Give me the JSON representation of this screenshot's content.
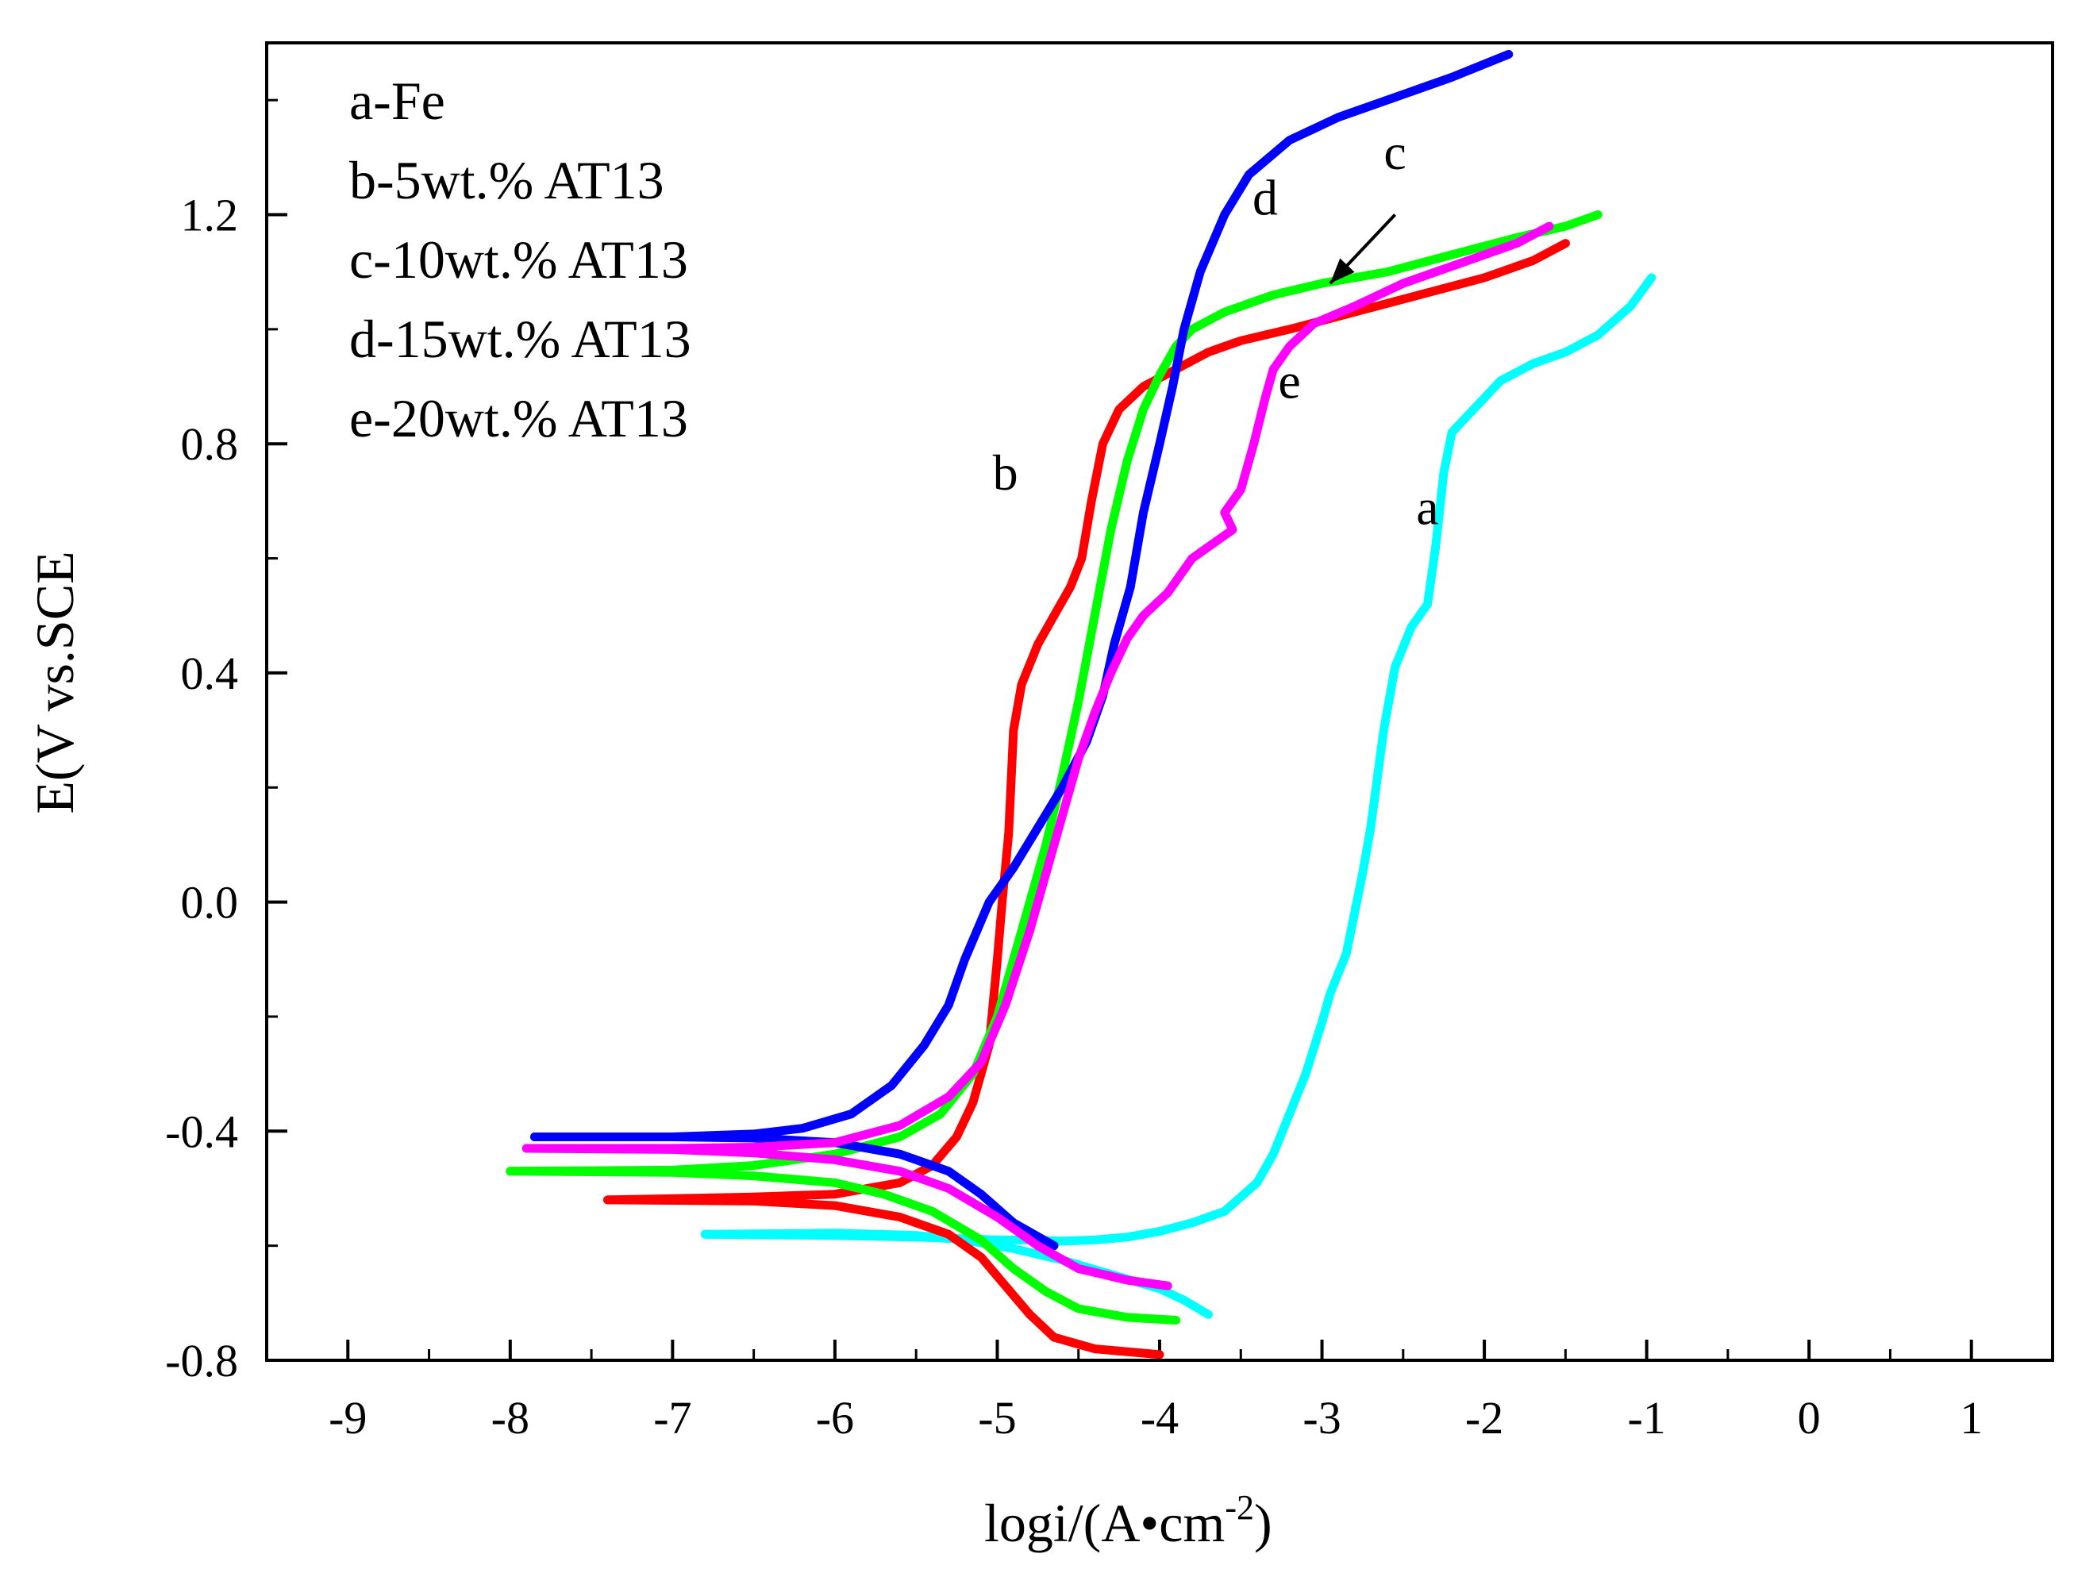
{
  "chart_data": {
    "type": "line",
    "title": "",
    "xlabel": "logi/(A•cm",
    "xlabel_sup": "-2",
    "xlabel_end": ")",
    "ylabel": "E(V vs.SCE",
    "xlim": [
      -9.5,
      1.5
    ],
    "ylim": [
      -0.8,
      1.5
    ],
    "x_ticks": [
      -9,
      -8,
      -7,
      -6,
      -5,
      -4,
      -3,
      -2,
      -1,
      0,
      1
    ],
    "x_tick_labels": [
      "-9",
      "-8",
      "-7",
      "-6",
      "-5",
      "-4",
      "-3",
      "-2",
      "-1",
      "0",
      "1"
    ],
    "y_ticks": [
      -0.8,
      -0.4,
      0.0,
      0.4,
      0.8,
      1.2
    ],
    "y_tick_labels": [
      "-0.8",
      "-0.4",
      "0.0",
      "0.4",
      "0.8",
      "1.2"
    ],
    "grid": false,
    "legend": {
      "placement": "top-left",
      "entries": [
        "a-Fe",
        "b-5wt.% AT13",
        "c-10wt.% AT13",
        "d-15wt.% AT13",
        "e-20wt.% AT13"
      ]
    },
    "series": [
      {
        "name": "a",
        "label": "a",
        "color": "#00ffff",
        "label_at": [
          -2.35,
          0.66
        ],
        "points": [
          [
            -6.8,
            -0.58
          ],
          [
            -6.0,
            -0.582
          ],
          [
            -5.5,
            -0.585
          ],
          [
            -5.0,
            -0.59
          ],
          [
            -4.8,
            -0.59
          ],
          [
            -4.6,
            -0.592
          ],
          [
            -4.4,
            -0.59
          ],
          [
            -4.2,
            -0.585
          ],
          [
            -4.0,
            -0.575
          ],
          [
            -3.8,
            -0.56
          ],
          [
            -3.6,
            -0.54
          ],
          [
            -3.4,
            -0.49
          ],
          [
            -3.3,
            -0.44
          ],
          [
            -3.2,
            -0.37
          ],
          [
            -3.1,
            -0.3
          ],
          [
            -3.0,
            -0.21
          ],
          [
            -2.95,
            -0.16
          ],
          [
            -2.85,
            -0.09
          ],
          [
            -2.75,
            0.05
          ],
          [
            -2.7,
            0.13
          ],
          [
            -2.62,
            0.3
          ],
          [
            -2.55,
            0.41
          ],
          [
            -2.45,
            0.48
          ],
          [
            -2.35,
            0.52
          ],
          [
            -2.3,
            0.62
          ],
          [
            -2.25,
            0.75
          ],
          [
            -2.2,
            0.82
          ],
          [
            -2.1,
            0.85
          ],
          [
            -2.0,
            0.88
          ],
          [
            -1.9,
            0.91
          ],
          [
            -1.7,
            0.94
          ],
          [
            -1.5,
            0.96
          ],
          [
            -1.3,
            0.99
          ],
          [
            -1.1,
            1.04
          ],
          [
            -0.97,
            1.09
          ]
        ]
      },
      {
        "name": "a-cathodic",
        "label": "",
        "color": "#00ffff",
        "points": [
          [
            -6.8,
            -0.58
          ],
          [
            -6.0,
            -0.578
          ],
          [
            -5.5,
            -0.582
          ],
          [
            -5.2,
            -0.59
          ],
          [
            -4.9,
            -0.605
          ],
          [
            -4.6,
            -0.625
          ],
          [
            -4.3,
            -0.65
          ],
          [
            -4.0,
            -0.675
          ],
          [
            -3.85,
            -0.695
          ],
          [
            -3.7,
            -0.72
          ]
        ]
      },
      {
        "name": "b",
        "label": "b",
        "color": "#ff0000",
        "label_at": [
          -4.95,
          0.72
        ],
        "points": [
          [
            -7.4,
            -0.52
          ],
          [
            -6.5,
            -0.515
          ],
          [
            -6.0,
            -0.51
          ],
          [
            -5.6,
            -0.49
          ],
          [
            -5.4,
            -0.46
          ],
          [
            -5.25,
            -0.41
          ],
          [
            -5.15,
            -0.35
          ],
          [
            -5.05,
            -0.25
          ],
          [
            -5.0,
            -0.1
          ],
          [
            -4.97,
            0.0
          ],
          [
            -4.93,
            0.12
          ],
          [
            -4.9,
            0.3
          ],
          [
            -4.85,
            0.38
          ],
          [
            -4.75,
            0.45
          ],
          [
            -4.65,
            0.5
          ],
          [
            -4.55,
            0.55
          ],
          [
            -4.48,
            0.6
          ],
          [
            -4.42,
            0.7
          ],
          [
            -4.35,
            0.8
          ],
          [
            -4.25,
            0.86
          ],
          [
            -4.1,
            0.9
          ],
          [
            -3.9,
            0.93
          ],
          [
            -3.7,
            0.96
          ],
          [
            -3.5,
            0.98
          ],
          [
            -3.2,
            1.0
          ],
          [
            -2.8,
            1.03
          ],
          [
            -2.4,
            1.06
          ],
          [
            -2.0,
            1.09
          ],
          [
            -1.7,
            1.12
          ],
          [
            -1.5,
            1.15
          ]
        ]
      },
      {
        "name": "b-cathodic",
        "label": "",
        "color": "#ff0000",
        "points": [
          [
            -7.4,
            -0.52
          ],
          [
            -6.5,
            -0.522
          ],
          [
            -6.0,
            -0.53
          ],
          [
            -5.6,
            -0.55
          ],
          [
            -5.3,
            -0.58
          ],
          [
            -5.1,
            -0.62
          ],
          [
            -4.95,
            -0.67
          ],
          [
            -4.8,
            -0.72
          ],
          [
            -4.65,
            -0.76
          ],
          [
            -4.4,
            -0.78
          ],
          [
            -4.0,
            -0.79
          ]
        ]
      },
      {
        "name": "c",
        "label": "c",
        "color": "#00ff00",
        "label_at": [
          -2.55,
          1.28
        ],
        "points": [
          [
            -8.0,
            -0.47
          ],
          [
            -7.0,
            -0.468
          ],
          [
            -6.5,
            -0.46
          ],
          [
            -6.0,
            -0.44
          ],
          [
            -5.6,
            -0.41
          ],
          [
            -5.35,
            -0.37
          ],
          [
            -5.15,
            -0.3
          ],
          [
            -5.0,
            -0.2
          ],
          [
            -4.9,
            -0.1
          ],
          [
            -4.8,
            0.0
          ],
          [
            -4.7,
            0.1
          ],
          [
            -4.6,
            0.22
          ],
          [
            -4.5,
            0.35
          ],
          [
            -4.4,
            0.5
          ],
          [
            -4.3,
            0.65
          ],
          [
            -4.2,
            0.77
          ],
          [
            -4.1,
            0.86
          ],
          [
            -4.0,
            0.92
          ],
          [
            -3.9,
            0.97
          ],
          [
            -3.8,
            1.0
          ],
          [
            -3.6,
            1.03
          ],
          [
            -3.3,
            1.06
          ],
          [
            -3.0,
            1.08
          ],
          [
            -2.6,
            1.1
          ],
          [
            -2.2,
            1.13
          ],
          [
            -1.8,
            1.16
          ],
          [
            -1.5,
            1.18
          ],
          [
            -1.3,
            1.2
          ]
        ]
      },
      {
        "name": "c-cathodic",
        "label": "",
        "color": "#00ff00",
        "points": [
          [
            -8.0,
            -0.47
          ],
          [
            -7.0,
            -0.472
          ],
          [
            -6.5,
            -0.478
          ],
          [
            -6.0,
            -0.49
          ],
          [
            -5.7,
            -0.51
          ],
          [
            -5.4,
            -0.54
          ],
          [
            -5.1,
            -0.59
          ],
          [
            -4.9,
            -0.64
          ],
          [
            -4.7,
            -0.68
          ],
          [
            -4.5,
            -0.71
          ],
          [
            -4.2,
            -0.725
          ],
          [
            -3.9,
            -0.73
          ]
        ]
      },
      {
        "name": "d",
        "label": "d",
        "color": "#0000ff",
        "label_at": [
          -3.35,
          1.2
        ],
        "points": [
          [
            -7.85,
            -0.41
          ],
          [
            -7.0,
            -0.41
          ],
          [
            -6.5,
            -0.405
          ],
          [
            -6.2,
            -0.395
          ],
          [
            -5.9,
            -0.37
          ],
          [
            -5.65,
            -0.32
          ],
          [
            -5.45,
            -0.25
          ],
          [
            -5.3,
            -0.18
          ],
          [
            -5.2,
            -0.1
          ],
          [
            -5.05,
            0.0
          ],
          [
            -4.9,
            0.06
          ],
          [
            -4.75,
            0.13
          ],
          [
            -4.6,
            0.2
          ],
          [
            -4.45,
            0.28
          ],
          [
            -4.35,
            0.36
          ],
          [
            -4.28,
            0.45
          ],
          [
            -4.18,
            0.55
          ],
          [
            -4.1,
            0.68
          ],
          [
            -4.0,
            0.8
          ],
          [
            -3.92,
            0.9
          ],
          [
            -3.85,
            1.0
          ],
          [
            -3.75,
            1.1
          ],
          [
            -3.6,
            1.2
          ],
          [
            -3.45,
            1.27
          ],
          [
            -3.2,
            1.33
          ],
          [
            -2.9,
            1.37
          ],
          [
            -2.6,
            1.4
          ],
          [
            -2.2,
            1.44
          ],
          [
            -1.85,
            1.48
          ]
        ]
      },
      {
        "name": "d-cathodic",
        "label": "",
        "color": "#0000ff",
        "points": [
          [
            -7.85,
            -0.41
          ],
          [
            -7.0,
            -0.41
          ],
          [
            -6.5,
            -0.412
          ],
          [
            -6.0,
            -0.42
          ],
          [
            -5.6,
            -0.44
          ],
          [
            -5.3,
            -0.47
          ],
          [
            -5.1,
            -0.51
          ],
          [
            -4.9,
            -0.56
          ],
          [
            -4.65,
            -0.6
          ]
        ]
      },
      {
        "name": "e",
        "label": "e",
        "color": "#ff00ff",
        "label_at": [
          -3.2,
          0.88
        ],
        "points": [
          [
            -7.9,
            -0.43
          ],
          [
            -7.0,
            -0.43
          ],
          [
            -6.5,
            -0.428
          ],
          [
            -6.0,
            -0.42
          ],
          [
            -5.6,
            -0.39
          ],
          [
            -5.3,
            -0.34
          ],
          [
            -5.1,
            -0.28
          ],
          [
            -4.95,
            -0.18
          ],
          [
            -4.8,
            -0.05
          ],
          [
            -4.7,
            0.05
          ],
          [
            -4.6,
            0.15
          ],
          [
            -4.5,
            0.25
          ],
          [
            -4.4,
            0.33
          ],
          [
            -4.3,
            0.4
          ],
          [
            -4.2,
            0.46
          ],
          [
            -4.1,
            0.5
          ],
          [
            -3.95,
            0.54
          ],
          [
            -3.8,
            0.6
          ],
          [
            -3.65,
            0.63
          ],
          [
            -3.55,
            0.65
          ],
          [
            -3.6,
            0.68
          ],
          [
            -3.5,
            0.72
          ],
          [
            -3.42,
            0.8
          ],
          [
            -3.35,
            0.88
          ],
          [
            -3.3,
            0.93
          ],
          [
            -3.2,
            0.97
          ],
          [
            -3.05,
            1.01
          ],
          [
            -2.8,
            1.04
          ],
          [
            -2.5,
            1.08
          ],
          [
            -2.1,
            1.12
          ],
          [
            -1.8,
            1.15
          ],
          [
            -1.6,
            1.18
          ]
        ]
      },
      {
        "name": "e-cathodic",
        "label": "",
        "color": "#ff00ff",
        "points": [
          [
            -7.9,
            -0.43
          ],
          [
            -7.0,
            -0.432
          ],
          [
            -6.5,
            -0.438
          ],
          [
            -6.0,
            -0.45
          ],
          [
            -5.6,
            -0.47
          ],
          [
            -5.3,
            -0.5
          ],
          [
            -5.0,
            -0.55
          ],
          [
            -4.75,
            -0.6
          ],
          [
            -4.5,
            -0.64
          ],
          [
            -4.2,
            -0.66
          ],
          [
            -3.95,
            -0.67
          ]
        ]
      }
    ],
    "annotations": [
      {
        "type": "arrow",
        "target_series": "c",
        "from": [
          -2.55,
          1.2
        ],
        "to": [
          -2.95,
          1.08
        ]
      }
    ]
  }
}
